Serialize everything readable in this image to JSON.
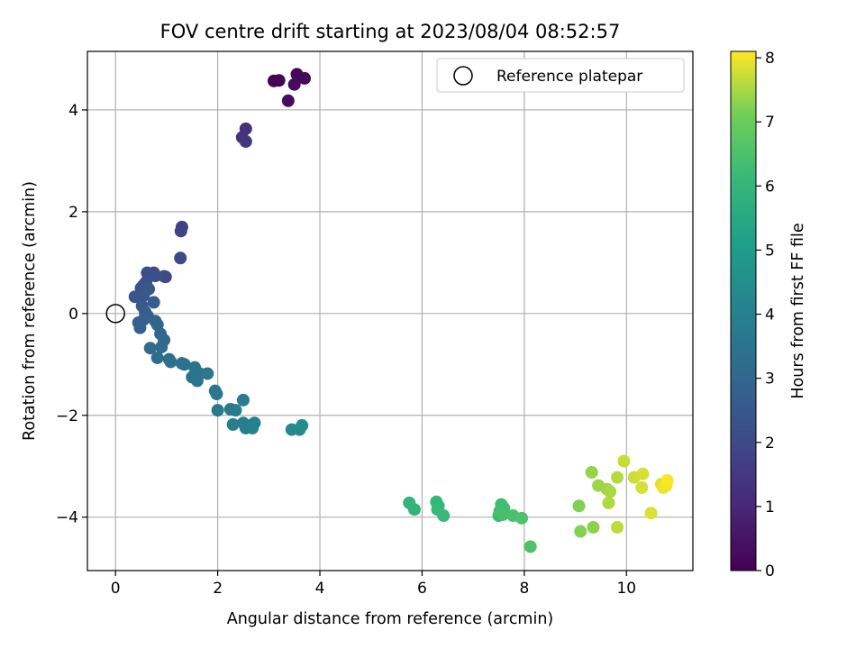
{
  "chart_data": {
    "type": "scatter",
    "title": "FOV centre drift starting at 2023/08/04 08:52:57",
    "xlabel": "Angular distance from reference (arcmin)",
    "ylabel": "Rotation from reference (arcmin)",
    "xlim": [
      -0.55,
      11.3
    ],
    "ylim": [
      -5.05,
      5.15
    ],
    "xticks": [
      0,
      2,
      4,
      6,
      8,
      10
    ],
    "yticks": [
      -4,
      -2,
      0,
      2,
      4
    ],
    "grid": true,
    "legend": {
      "position": "top-right",
      "entries": [
        "Reference platepar"
      ]
    },
    "reference_point": {
      "x": 0,
      "y": 0
    },
    "colorbar": {
      "label": "Hours from first FF file",
      "range": [
        0,
        8.1
      ],
      "ticks": [
        0,
        1,
        2,
        3,
        4,
        5,
        6,
        7,
        8
      ],
      "colormap": "viridis"
    },
    "points": [
      {
        "x": 3.1,
        "y": 4.57,
        "c": 0.05
      },
      {
        "x": 3.2,
        "y": 4.58,
        "c": 0.1
      },
      {
        "x": 3.55,
        "y": 4.7,
        "c": 0.15
      },
      {
        "x": 3.7,
        "y": 4.62,
        "c": 0.2
      },
      {
        "x": 3.5,
        "y": 4.5,
        "c": 0.25
      },
      {
        "x": 3.38,
        "y": 4.18,
        "c": 0.3
      },
      {
        "x": 2.55,
        "y": 3.63,
        "c": 1.3
      },
      {
        "x": 2.48,
        "y": 3.46,
        "c": 1.35
      },
      {
        "x": 2.55,
        "y": 3.38,
        "c": 1.4
      },
      {
        "x": 1.3,
        "y": 1.7,
        "c": 1.8
      },
      {
        "x": 1.28,
        "y": 1.62,
        "c": 1.85
      },
      {
        "x": 1.27,
        "y": 1.09,
        "c": 1.95
      },
      {
        "x": 0.98,
        "y": 0.72,
        "c": 2.0
      },
      {
        "x": 0.95,
        "y": 0.73,
        "c": 2.05
      },
      {
        "x": 0.75,
        "y": 0.8,
        "c": 2.1
      },
      {
        "x": 0.62,
        "y": 0.8,
        "c": 2.15
      },
      {
        "x": 0.78,
        "y": 0.74,
        "c": 2.2
      },
      {
        "x": 0.6,
        "y": 0.62,
        "c": 2.25
      },
      {
        "x": 0.55,
        "y": 0.56,
        "c": 2.3
      },
      {
        "x": 0.5,
        "y": 0.5,
        "c": 2.35
      },
      {
        "x": 0.38,
        "y": 0.33,
        "c": 2.4
      },
      {
        "x": 0.55,
        "y": 0.35,
        "c": 2.45
      },
      {
        "x": 0.65,
        "y": 0.48,
        "c": 2.5
      },
      {
        "x": 0.52,
        "y": 0.15,
        "c": 2.55
      },
      {
        "x": 0.75,
        "y": 0.22,
        "c": 2.6
      },
      {
        "x": 0.58,
        "y": 0.03,
        "c": 2.65
      },
      {
        "x": 0.63,
        "y": -0.05,
        "c": 2.7
      },
      {
        "x": 0.45,
        "y": -0.18,
        "c": 2.75
      },
      {
        "x": 0.55,
        "y": -0.12,
        "c": 2.8
      },
      {
        "x": 0.48,
        "y": -0.28,
        "c": 2.85
      },
      {
        "x": 0.78,
        "y": -0.15,
        "c": 2.9
      },
      {
        "x": 0.82,
        "y": -0.22,
        "c": 2.95
      },
      {
        "x": 0.88,
        "y": -0.4,
        "c": 3.0
      },
      {
        "x": 0.95,
        "y": -0.52,
        "c": 3.05
      },
      {
        "x": 0.9,
        "y": -0.66,
        "c": 3.1
      },
      {
        "x": 0.68,
        "y": -0.68,
        "c": 3.15
      },
      {
        "x": 0.82,
        "y": -0.87,
        "c": 3.2
      },
      {
        "x": 1.05,
        "y": -0.9,
        "c": 3.25
      },
      {
        "x": 1.08,
        "y": -0.95,
        "c": 3.3
      },
      {
        "x": 1.3,
        "y": -0.98,
        "c": 3.35
      },
      {
        "x": 1.35,
        "y": -1.0,
        "c": 3.4
      },
      {
        "x": 1.55,
        "y": -1.06,
        "c": 3.45
      },
      {
        "x": 1.5,
        "y": -1.25,
        "c": 3.5
      },
      {
        "x": 1.6,
        "y": -1.32,
        "c": 3.55
      },
      {
        "x": 1.65,
        "y": -1.18,
        "c": 3.6
      },
      {
        "x": 1.8,
        "y": -1.18,
        "c": 3.62
      },
      {
        "x": 1.95,
        "y": -1.52,
        "c": 3.65
      },
      {
        "x": 1.98,
        "y": -1.58,
        "c": 3.68
      },
      {
        "x": 2.0,
        "y": -1.9,
        "c": 3.7
      },
      {
        "x": 2.25,
        "y": -1.88,
        "c": 3.75
      },
      {
        "x": 2.35,
        "y": -1.9,
        "c": 3.78
      },
      {
        "x": 2.5,
        "y": -1.7,
        "c": 3.8
      },
      {
        "x": 2.3,
        "y": -2.18,
        "c": 3.85
      },
      {
        "x": 2.5,
        "y": -2.15,
        "c": 3.88
      },
      {
        "x": 2.55,
        "y": -2.25,
        "c": 3.9
      },
      {
        "x": 2.65,
        "y": -2.2,
        "c": 3.93
      },
      {
        "x": 2.72,
        "y": -2.15,
        "c": 3.95
      },
      {
        "x": 2.68,
        "y": -2.25,
        "c": 3.98
      },
      {
        "x": 3.45,
        "y": -2.28,
        "c": 4.3
      },
      {
        "x": 3.6,
        "y": -2.28,
        "c": 4.35
      },
      {
        "x": 3.65,
        "y": -2.2,
        "c": 4.4
      },
      {
        "x": 5.75,
        "y": -3.72,
        "c": 5.9
      },
      {
        "x": 5.85,
        "y": -3.85,
        "c": 5.95
      },
      {
        "x": 6.28,
        "y": -3.7,
        "c": 6.0
      },
      {
        "x": 6.32,
        "y": -3.78,
        "c": 6.05
      },
      {
        "x": 6.3,
        "y": -3.85,
        "c": 6.1
      },
      {
        "x": 6.42,
        "y": -3.97,
        "c": 6.15
      },
      {
        "x": 7.5,
        "y": -3.97,
        "c": 6.2
      },
      {
        "x": 7.55,
        "y": -3.75,
        "c": 6.25
      },
      {
        "x": 7.6,
        "y": -3.82,
        "c": 6.3
      },
      {
        "x": 7.52,
        "y": -3.88,
        "c": 6.35
      },
      {
        "x": 7.58,
        "y": -3.95,
        "c": 6.4
      },
      {
        "x": 7.78,
        "y": -3.97,
        "c": 6.45
      },
      {
        "x": 7.95,
        "y": -4.02,
        "c": 6.5
      },
      {
        "x": 8.12,
        "y": -4.58,
        "c": 6.55
      },
      {
        "x": 9.07,
        "y": -3.78,
        "c": 7.2
      },
      {
        "x": 9.1,
        "y": -4.28,
        "c": 7.25
      },
      {
        "x": 9.35,
        "y": -4.2,
        "c": 7.3
      },
      {
        "x": 9.32,
        "y": -3.12,
        "c": 7.35
      },
      {
        "x": 9.45,
        "y": -3.38,
        "c": 7.4
      },
      {
        "x": 9.62,
        "y": -3.45,
        "c": 7.45
      },
      {
        "x": 9.68,
        "y": -3.5,
        "c": 7.5
      },
      {
        "x": 9.65,
        "y": -3.72,
        "c": 7.55
      },
      {
        "x": 9.82,
        "y": -3.22,
        "c": 7.6
      },
      {
        "x": 9.82,
        "y": -4.2,
        "c": 7.65
      },
      {
        "x": 9.95,
        "y": -2.9,
        "c": 7.7
      },
      {
        "x": 10.15,
        "y": -3.22,
        "c": 7.75
      },
      {
        "x": 10.3,
        "y": -3.42,
        "c": 7.8
      },
      {
        "x": 10.32,
        "y": -3.15,
        "c": 7.82
      },
      {
        "x": 10.48,
        "y": -3.92,
        "c": 7.85
      },
      {
        "x": 10.68,
        "y": -3.35,
        "c": 7.9
      },
      {
        "x": 10.72,
        "y": -3.42,
        "c": 7.95
      },
      {
        "x": 10.78,
        "y": -3.38,
        "c": 8.0
      },
      {
        "x": 10.8,
        "y": -3.28,
        "c": 8.05
      }
    ]
  }
}
